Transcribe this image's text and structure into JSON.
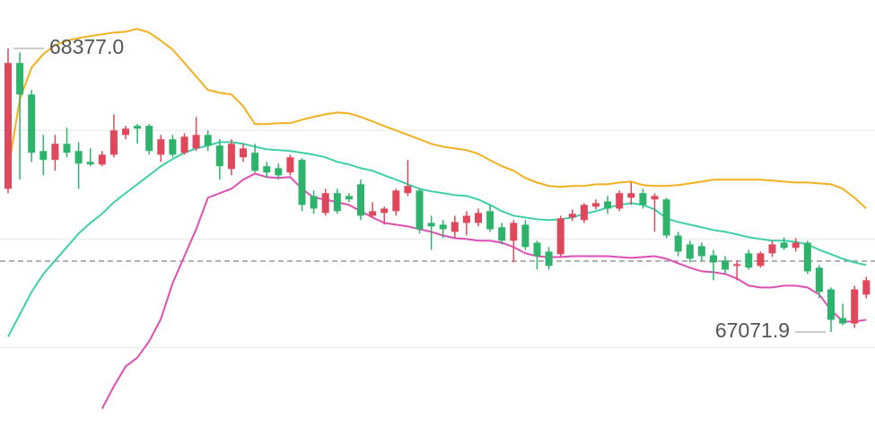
{
  "chart_data": {
    "type": "candlestick",
    "ylim": [
      66630,
      68600
    ],
    "grid_values": [
      67000,
      67500,
      68000
    ],
    "grid_color": "#eeeeee",
    "price_line": 67398,
    "up_color": "#e0475a",
    "down_color": "#2db36b",
    "open": [
      67731,
      68310,
      68165,
      67905,
      67864,
      67938,
      67905,
      67855,
      67843,
      67888,
      67979,
      68021,
      68021,
      67888,
      67959,
      67897,
      67917,
      67979,
      67930,
      67822,
      67876,
      67897,
      67835,
      67826,
      67806,
      67864,
      67698,
      67620,
      67711,
      67698,
      67752,
      67607,
      67620,
      67628,
      67711,
      67723,
      67574,
      67566,
      67533,
      67574,
      67574,
      67628,
      67554,
      67492,
      67566,
      67483,
      67442,
      67430,
      67599,
      67587,
      67649,
      67673,
      67640,
      67690,
      67711,
      67682,
      67682,
      67516,
      67475,
      67467,
      67425,
      67401,
      67376,
      67434,
      67376,
      67434,
      67483,
      67459,
      67483,
      67368,
      67268,
      67136,
      67111,
      67244
    ],
    "high": [
      68377,
      68359,
      68186,
      67979,
      67979,
      68012,
      67946,
      67917,
      67905,
      68074,
      68021,
      68029,
      68029,
      67979,
      67979,
      67987,
      68062,
      68000,
      67959,
      67959,
      67938,
      67938,
      67855,
      67847,
      67888,
      67872,
      67723,
      67731,
      67731,
      67711,
      67773,
      67669,
      67649,
      67731,
      67864,
      67731,
      67607,
      67587,
      67607,
      67628,
      67640,
      67657,
      67574,
      67587,
      67587,
      67492,
      67463,
      67607,
      67636,
      67665,
      67682,
      67698,
      67723,
      67760,
      67731,
      67711,
      67690,
      67533,
      67492,
      67483,
      67450,
      67421,
      67401,
      67450,
      67442,
      67492,
      67508,
      67504,
      67492,
      67380,
      67277,
      67202,
      67285,
      67326
    ],
    "low": [
      67711,
      67773,
      67855,
      67793,
      67814,
      67876,
      67731,
      67835,
      67835,
      67876,
      67959,
      67938,
      67888,
      67855,
      67876,
      67888,
      67905,
      67905,
      67773,
      67793,
      67855,
      67806,
      67781,
      67773,
      67793,
      67628,
      67616,
      67607,
      67616,
      67669,
      67587,
      67599,
      67566,
      67607,
      67698,
      67525,
      67450,
      67504,
      67504,
      67516,
      67558,
      67533,
      67475,
      67392,
      67450,
      67359,
      67359,
      67421,
      67583,
      67574,
      67636,
      67616,
      67628,
      67657,
      67640,
      67533,
      67504,
      67421,
      67392,
      67401,
      67310,
      67339,
      67310,
      67359,
      67368,
      67417,
      67450,
      67442,
      67339,
      67227,
      67071.9,
      67103,
      67091,
      67227
    ],
    "close": [
      68310,
      68165,
      67897,
      67864,
      67938,
      67897,
      67847,
      67843,
      67888,
      68000,
      68008,
      68008,
      67905,
      67959,
      67888,
      67971,
      67979,
      67930,
      67835,
      67938,
      67917,
      67814,
      67806,
      67793,
      67876,
      67657,
      67640,
      67711,
      67628,
      67682,
      67607,
      67628,
      67640,
      67723,
      67744,
      67545,
      67558,
      67545,
      67578,
      67607,
      67620,
      67545,
      67492,
      67574,
      67463,
      67421,
      67376,
      67595,
      67616,
      67657,
      67665,
      67640,
      67711,
      67711,
      67657,
      67698,
      67516,
      67442,
      67409,
      67421,
      67392,
      67359,
      67384,
      67368,
      67434,
      67475,
      67459,
      67483,
      67351,
      67256,
      67128,
      67111,
      67268,
      67310
    ],
    "overlays": [
      {
        "color": "#f0b020",
        "values": [
          67814,
          68144,
          68289,
          68351,
          68392,
          68413,
          68425,
          68434,
          68442,
          68450,
          68454,
          68467,
          68450,
          68413,
          68372,
          68310,
          68248,
          68186,
          68173,
          68165,
          68111,
          68029,
          68029,
          68033,
          68033,
          68049,
          68062,
          68074,
          68082,
          68078,
          68062,
          68041,
          68020,
          68000,
          67979,
          67959,
          67938,
          67925,
          67917,
          67909,
          67892,
          67863,
          67835,
          67814,
          67781,
          67760,
          67744,
          67740,
          67744,
          67744,
          67752,
          67752,
          67760,
          67764,
          67748,
          67744,
          67744,
          67748,
          67756,
          67764,
          67773,
          67773,
          67773,
          67773,
          67773,
          67769,
          67764,
          67760,
          67760,
          67756,
          67752,
          67731,
          67690,
          67640
        ]
      },
      {
        "color": "#3fcfa8",
        "values": [
          67050,
          67153,
          67256,
          67339,
          67401,
          67463,
          67525,
          67574,
          67616,
          67669,
          67711,
          67752,
          67793,
          67835,
          67868,
          67897,
          67917,
          67930,
          67946,
          67946,
          67938,
          67925,
          67913,
          67909,
          67905,
          67897,
          67888,
          67876,
          67855,
          67843,
          67826,
          67814,
          67793,
          67773,
          67752,
          67731,
          67719,
          67711,
          67702,
          67698,
          67682,
          67657,
          67628,
          67607,
          67599,
          67591,
          67587,
          67591,
          67599,
          67616,
          67628,
          67644,
          67657,
          67665,
          67657,
          67636,
          67595,
          67578,
          67566,
          67554,
          67541,
          67533,
          67521,
          67508,
          67500,
          67492,
          67492,
          67487,
          67475,
          67450,
          67430,
          67409,
          67392,
          67380
        ]
      },
      {
        "color": "#dd4fb4",
        "values": [
          null,
          null,
          null,
          null,
          null,
          null,
          null,
          null,
          66719,
          66822,
          66913,
          66954,
          67029,
          67132,
          67297,
          67421,
          67545,
          67690,
          67711,
          67731,
          67773,
          67801,
          67785,
          67781,
          67785,
          67731,
          67690,
          67682,
          67669,
          67657,
          67628,
          67599,
          67574,
          67566,
          67558,
          67545,
          67533,
          67516,
          67504,
          67500,
          67492,
          67492,
          67483,
          67463,
          67434,
          67421,
          67417,
          67417,
          67421,
          67421,
          67421,
          67421,
          67417,
          67413,
          67417,
          67421,
          67409,
          67388,
          67368,
          67351,
          67347,
          67339,
          67318,
          67285,
          67277,
          67277,
          67285,
          67285,
          67277,
          67244,
          67173,
          67120,
          67120,
          67128
        ]
      }
    ],
    "annotations": [
      {
        "value": 68377,
        "label": "68377.0",
        "index": 0
      },
      {
        "value": 67071.9,
        "label": "67071.9",
        "index": 70
      }
    ]
  }
}
